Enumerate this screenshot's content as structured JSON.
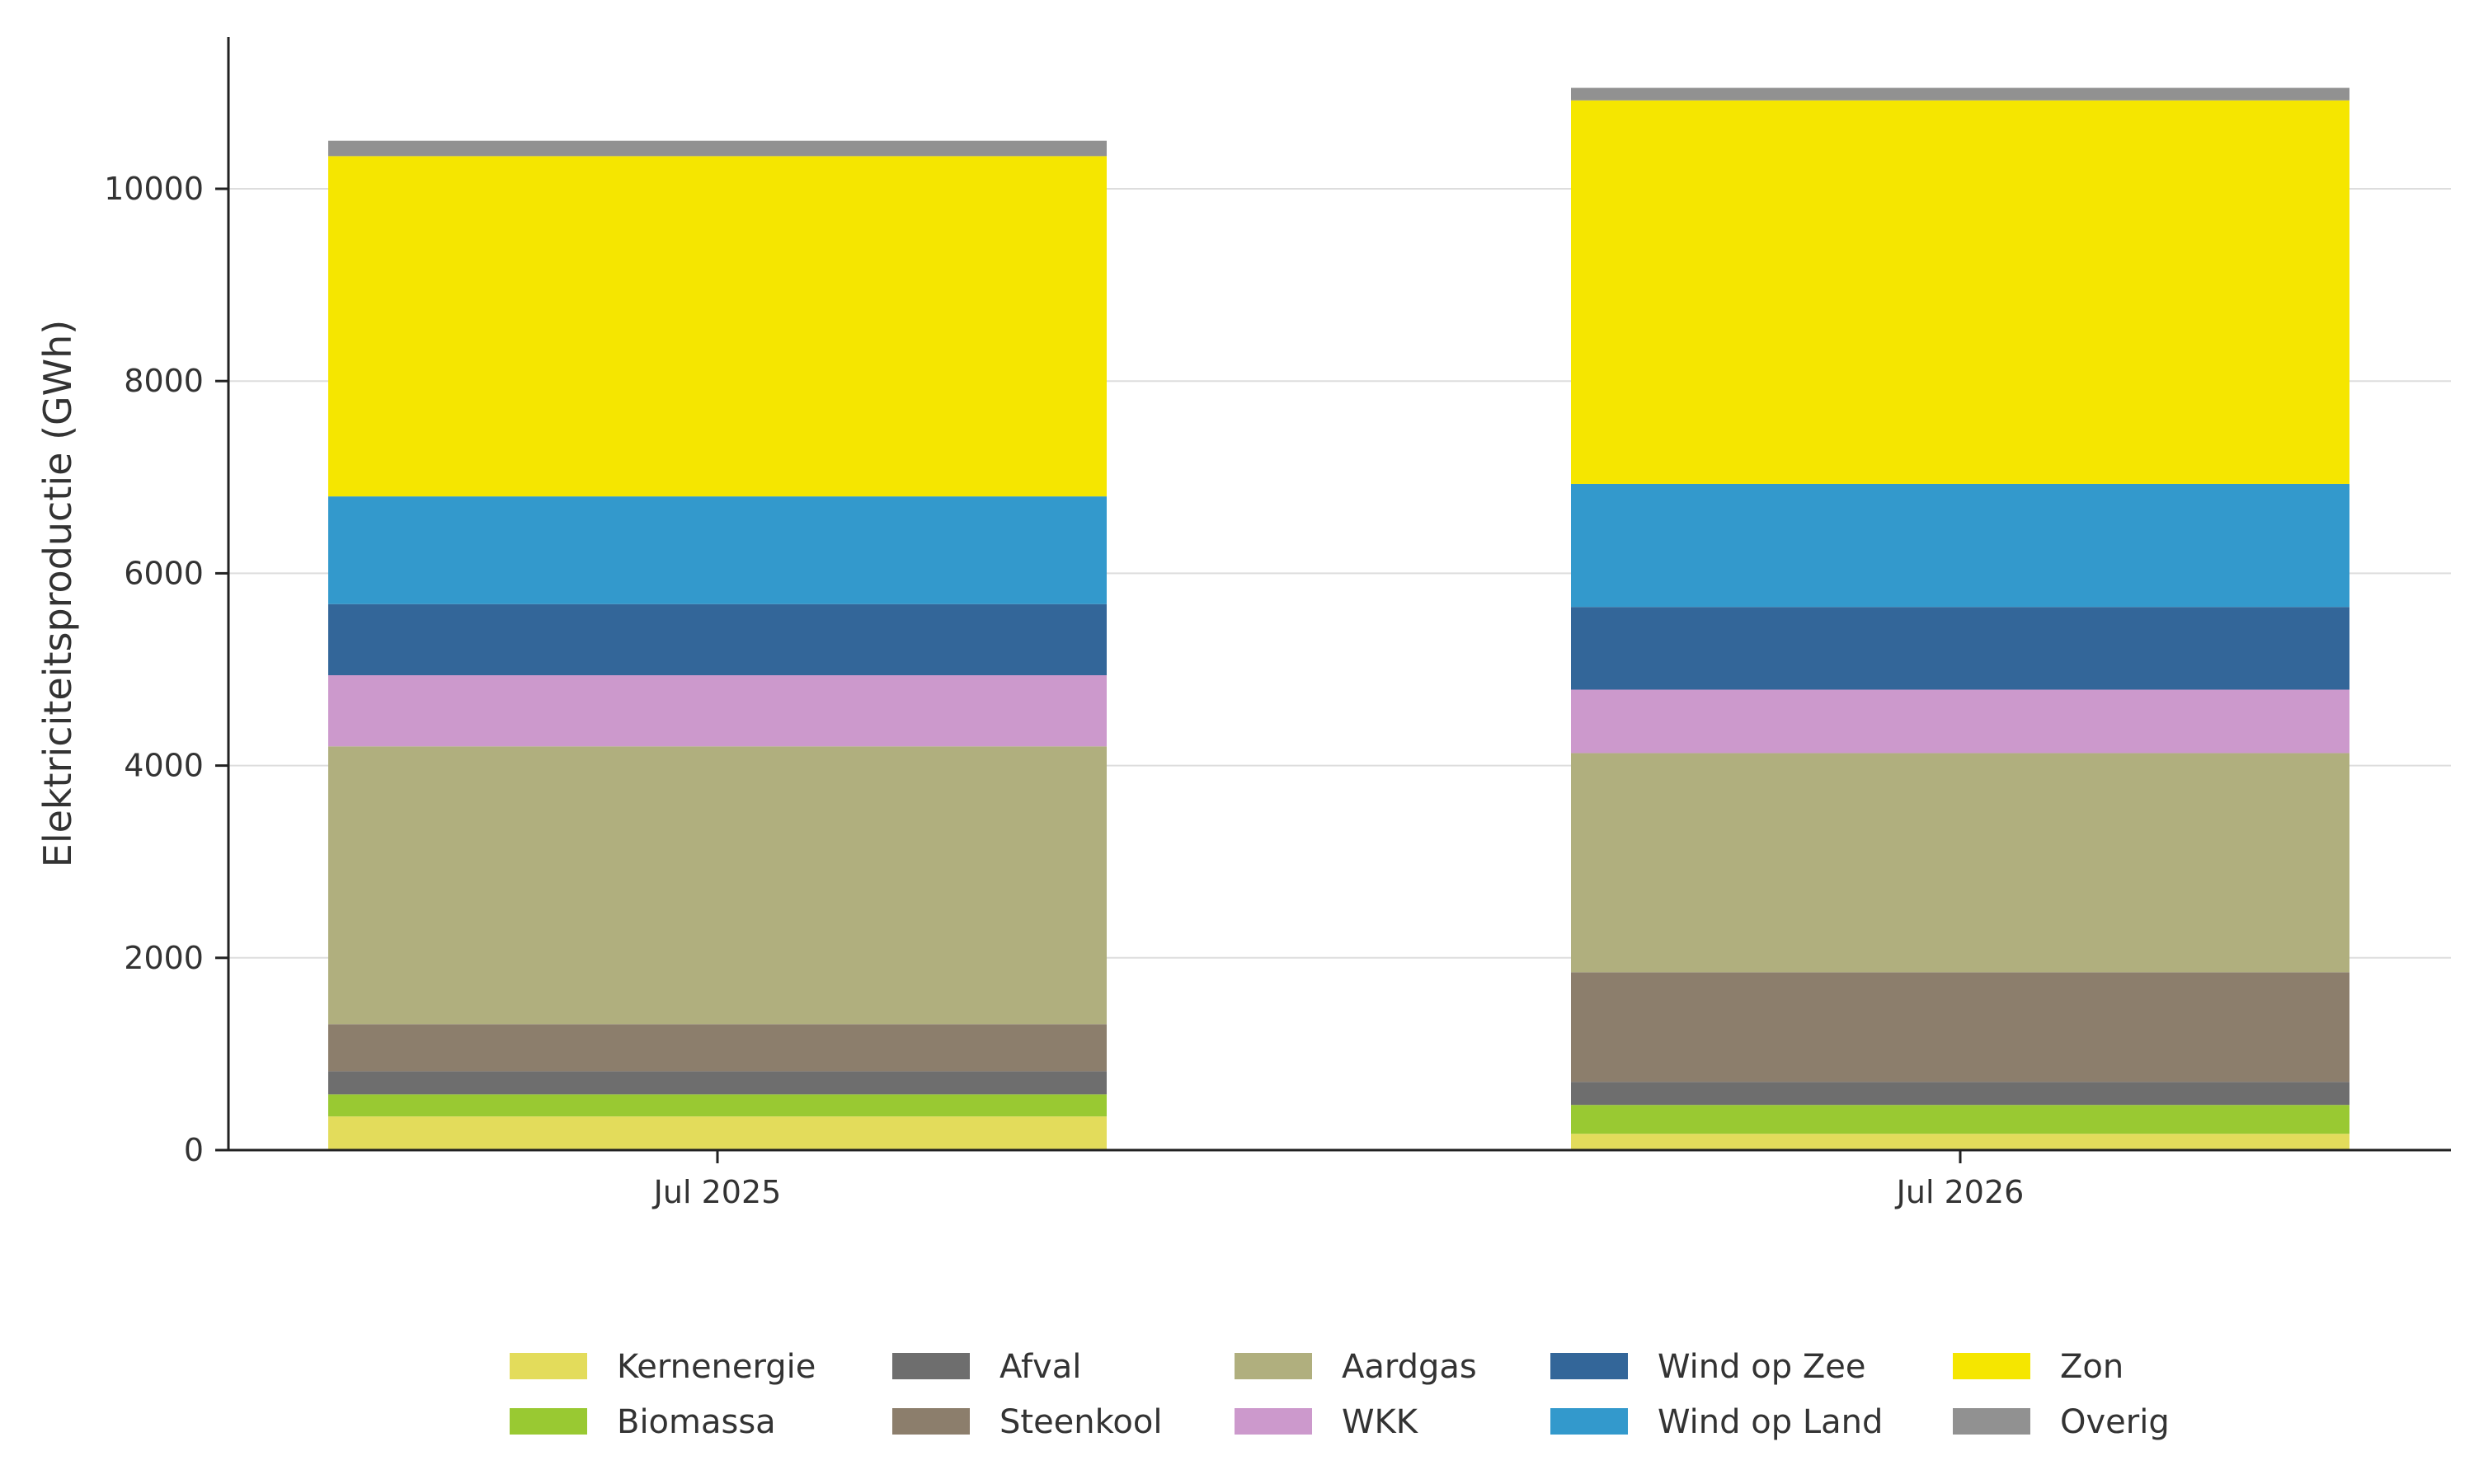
{
  "chart_data": {
    "type": "bar",
    "stacked": true,
    "title": "",
    "xlabel": "",
    "ylabel": "Elektriciteitsproductie (GWh)",
    "ylim": [
      0,
      11500
    ],
    "yticks": [
      0,
      2000,
      4000,
      6000,
      8000,
      10000
    ],
    "grid": "horizontal",
    "legend_position": "bottom",
    "categories": [
      "Jul 2025",
      "Jul 2026"
    ],
    "series": [
      {
        "name": "Kernenergie",
        "color": "#e3dc5b",
        "values": [
          350,
          170
        ]
      },
      {
        "name": "Biomassa",
        "color": "#99c932",
        "values": [
          230,
          300
        ]
      },
      {
        "name": "Afval",
        "color": "#6e6e6e",
        "values": [
          240,
          240
        ]
      },
      {
        "name": "Steenkool",
        "color": "#8c7e6c",
        "values": [
          490,
          1140
        ]
      },
      {
        "name": "Aardgas",
        "color": "#b0af7e",
        "values": [
          2890,
          2280
        ]
      },
      {
        "name": "WKK",
        "color": "#cc99cc",
        "values": [
          740,
          660
        ]
      },
      {
        "name": "Wind op Zee",
        "color": "#336699",
        "values": [
          740,
          860
        ]
      },
      {
        "name": "Wind op Land",
        "color": "#3399cc",
        "values": [
          1120,
          1280
        ]
      },
      {
        "name": "Zon",
        "color": "#f5e600",
        "values": [
          3540,
          3990
        ]
      },
      {
        "name": "Overig",
        "color": "#919191",
        "values": [
          160,
          130
        ]
      }
    ]
  }
}
